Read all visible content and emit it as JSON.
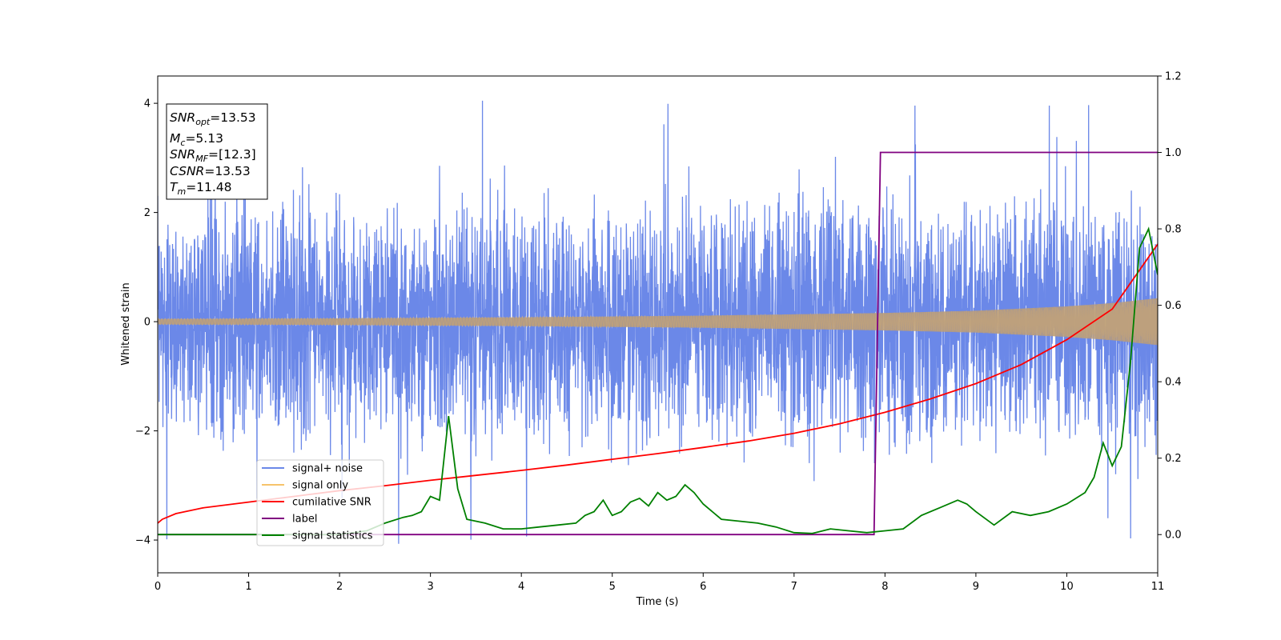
{
  "chart_data": {
    "type": "line",
    "title": "",
    "xlabel": "Time (s)",
    "ylabel_left": "Whitened strain",
    "ylabel_right": "",
    "xlim": [
      0,
      11
    ],
    "ylim_left": [
      -4.6,
      4.5
    ],
    "ylim_right": [
      -0.1,
      1.2
    ],
    "x_ticks": [
      "0",
      "1",
      "2",
      "3",
      "4",
      "5",
      "6",
      "7",
      "8",
      "9",
      "10",
      "11"
    ],
    "y_ticks_left": [
      "−4",
      "−2",
      "0",
      "2",
      "4"
    ],
    "y_ticks_right": [
      "0.0",
      "0.2",
      "0.4",
      "0.6",
      "0.8",
      "1.0",
      "1.2"
    ],
    "grid": false,
    "legend_position": "lower-left",
    "colors": {
      "signal_noise": "#6b88e8",
      "signal_only": "#f6c36b",
      "overlap": "#b89c7a",
      "cumulative_snr": "#ff0000",
      "label": "#800080",
      "signal_statistics": "#008000"
    },
    "series": [
      {
        "name": "signal+ noise",
        "axis": "left",
        "description_kind": "noise",
        "noise_std": 1.05,
        "envelope": [
          [
            0,
            2.9
          ],
          [
            11,
            3.2
          ]
        ]
      },
      {
        "name": "signal only",
        "axis": "left",
        "amplitude_envelope": [
          [
            0,
            0.05
          ],
          [
            2,
            0.06
          ],
          [
            4,
            0.08
          ],
          [
            6,
            0.11
          ],
          [
            8,
            0.16
          ],
          [
            9,
            0.2
          ],
          [
            10,
            0.28
          ],
          [
            10.5,
            0.34
          ],
          [
            11,
            0.43
          ]
        ]
      },
      {
        "name": "cumilative SNR",
        "axis": "right",
        "x": [
          0,
          0.05,
          0.2,
          0.5,
          1,
          1.5,
          2,
          2.5,
          3,
          3.5,
          4,
          4.5,
          5,
          5.5,
          6,
          6.5,
          7,
          7.5,
          8,
          8.5,
          9,
          9.5,
          10,
          10.5,
          11
        ],
        "y": [
          0.03,
          0.04,
          0.055,
          0.07,
          0.085,
          0.1,
          0.115,
          0.128,
          0.142,
          0.155,
          0.168,
          0.182,
          0.197,
          0.212,
          0.228,
          0.245,
          0.265,
          0.29,
          0.32,
          0.355,
          0.395,
          0.445,
          0.51,
          0.59,
          0.76
        ]
      },
      {
        "name": "label",
        "axis": "right",
        "x": [
          0,
          7.88,
          7.95,
          11
        ],
        "y": [
          0,
          0,
          1,
          1
        ]
      },
      {
        "name": "signal statistics",
        "axis": "right",
        "x": [
          0,
          1,
          2,
          2.3,
          2.5,
          2.7,
          2.8,
          2.9,
          3.0,
          3.1,
          3.2,
          3.3,
          3.4,
          3.6,
          3.8,
          4.0,
          4.2,
          4.4,
          4.6,
          4.7,
          4.8,
          4.9,
          5.0,
          5.1,
          5.2,
          5.3,
          5.4,
          5.5,
          5.6,
          5.7,
          5.8,
          5.9,
          6.0,
          6.2,
          6.4,
          6.6,
          6.8,
          7.0,
          7.2,
          7.4,
          7.6,
          7.8,
          8.0,
          8.2,
          8.4,
          8.6,
          8.8,
          8.9,
          9.0,
          9.2,
          9.4,
          9.6,
          9.8,
          10.0,
          10.2,
          10.3,
          10.4,
          10.5,
          10.6,
          10.7,
          10.8,
          10.9,
          11.0
        ],
        "y": [
          0.0,
          0.0,
          0.0,
          0.01,
          0.03,
          0.045,
          0.05,
          0.06,
          0.1,
          0.09,
          0.31,
          0.12,
          0.04,
          0.03,
          0.015,
          0.015,
          0.02,
          0.025,
          0.03,
          0.05,
          0.06,
          0.09,
          0.05,
          0.06,
          0.085,
          0.095,
          0.075,
          0.11,
          0.09,
          0.1,
          0.13,
          0.11,
          0.08,
          0.04,
          0.035,
          0.03,
          0.02,
          0.005,
          0.003,
          0.015,
          0.01,
          0.005,
          0.01,
          0.015,
          0.05,
          0.07,
          0.09,
          0.08,
          0.06,
          0.025,
          0.06,
          0.05,
          0.06,
          0.08,
          0.11,
          0.15,
          0.24,
          0.18,
          0.23,
          0.45,
          0.75,
          0.8,
          0.68
        ]
      }
    ],
    "annotation_box": {
      "lines": [
        {
          "var": "SNR",
          "sub": "opt",
          "val": "=13.53"
        },
        {
          "var": "M",
          "sub": "c",
          "val": "=5.13"
        },
        {
          "var": "SNR",
          "sub": "MF",
          "val": "=[12.3]"
        },
        {
          "var": "CSNR",
          "sub": "",
          "val": "=13.53"
        },
        {
          "var": "T",
          "sub": "m",
          "val": "=11.48"
        }
      ]
    }
  }
}
